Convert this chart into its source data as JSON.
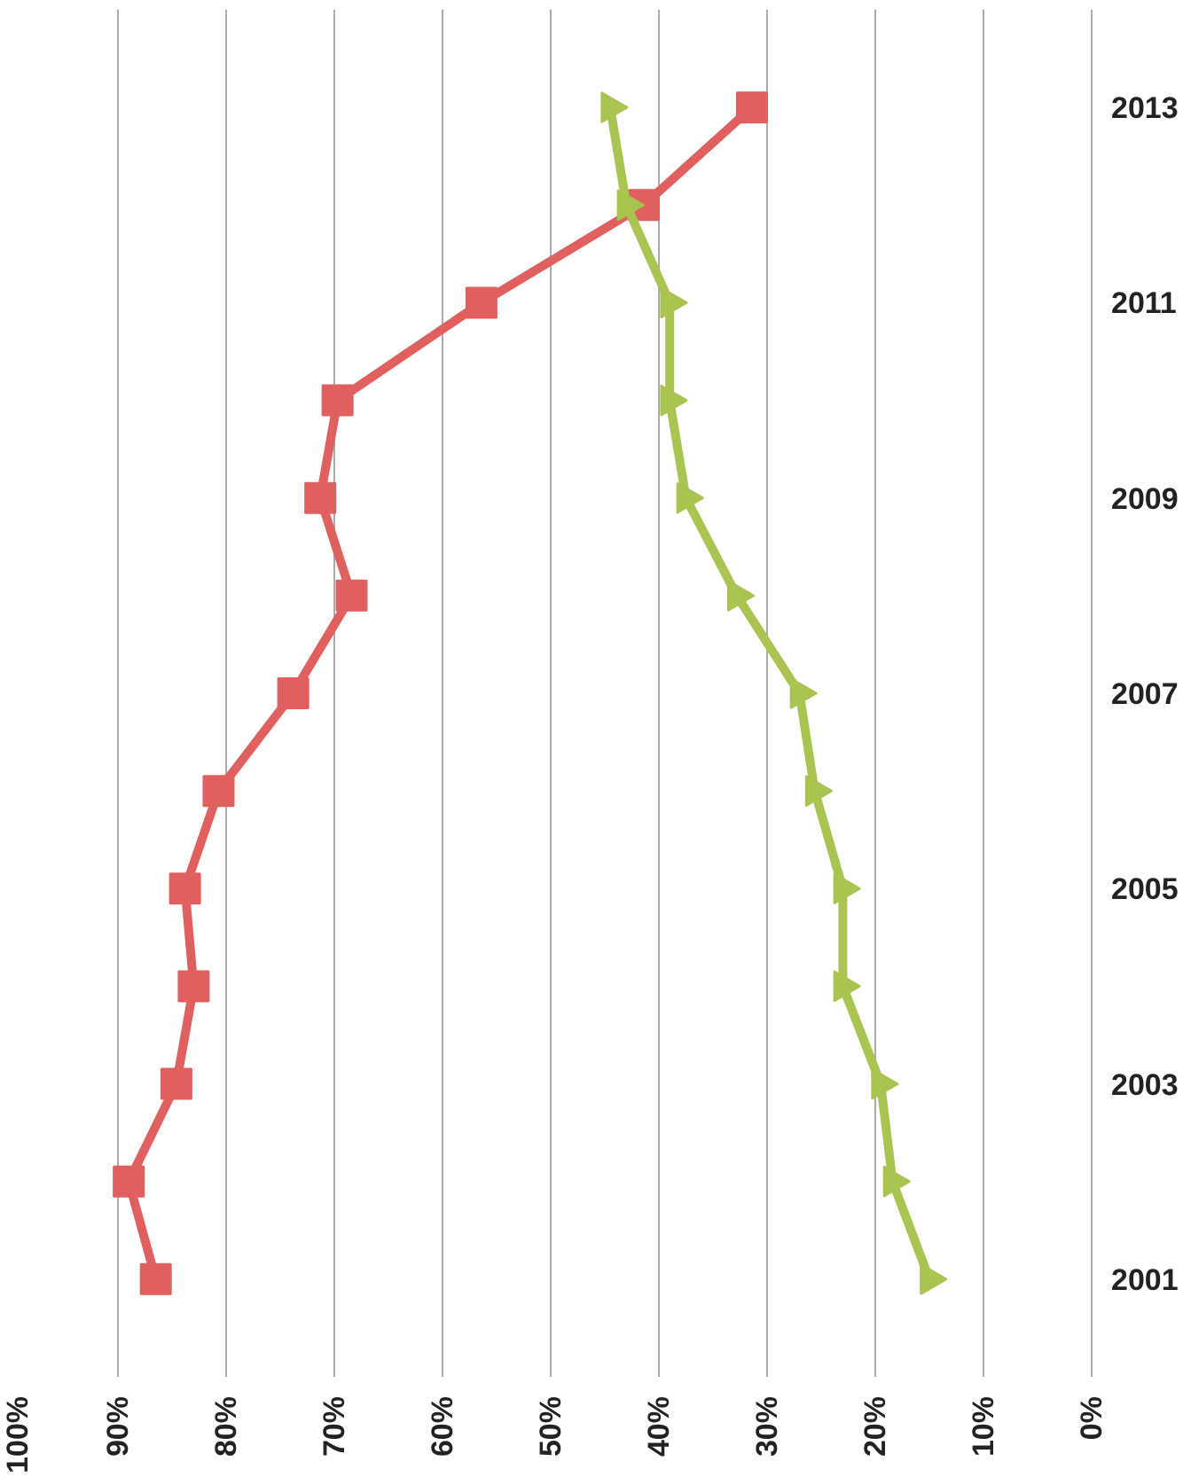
{
  "chart_data": {
    "type": "line",
    "xlim": [
      100,
      0
    ],
    "xticks": [
      {
        "value": 100,
        "label": "100%"
      },
      {
        "value": 90,
        "label": "90%"
      },
      {
        "value": 80,
        "label": "80%"
      },
      {
        "value": 70,
        "label": "70%"
      },
      {
        "value": 60,
        "label": "60%"
      },
      {
        "value": 50,
        "label": "50%"
      },
      {
        "value": 40,
        "label": "40%"
      },
      {
        "value": 30,
        "label": "30%"
      },
      {
        "value": 20,
        "label": "20%"
      },
      {
        "value": 10,
        "label": "10%"
      },
      {
        "value": 0,
        "label": "0%"
      }
    ],
    "ylim": [
      2000,
      2014
    ],
    "yticks": [
      2001,
      2003,
      2005,
      2007,
      2009,
      2011,
      2013
    ],
    "grid": "x",
    "series": [
      {
        "color": "#e0605f",
        "marker": "square",
        "x": [
          86.5,
          89,
          84.6,
          83,
          83.8,
          80.7,
          73.8,
          68.4,
          71.3,
          69.7,
          56.4,
          41.4,
          31.4
        ],
        "values": [
          2001,
          2002,
          2003,
          2004,
          2005,
          2006,
          2007,
          2008,
          2009,
          2010,
          2011,
          2012,
          2013
        ]
      },
      {
        "color": "#a9c451",
        "marker": "triangle",
        "x": [
          15,
          18.4,
          19.5,
          23,
          23,
          25.6,
          27,
          32.8,
          37.5,
          39,
          39,
          43,
          44.5
        ],
        "values": [
          2001,
          2002,
          2003,
          2004,
          2005,
          2006,
          2007,
          2008,
          2009,
          2010,
          2011,
          2012,
          2013
        ]
      }
    ]
  }
}
